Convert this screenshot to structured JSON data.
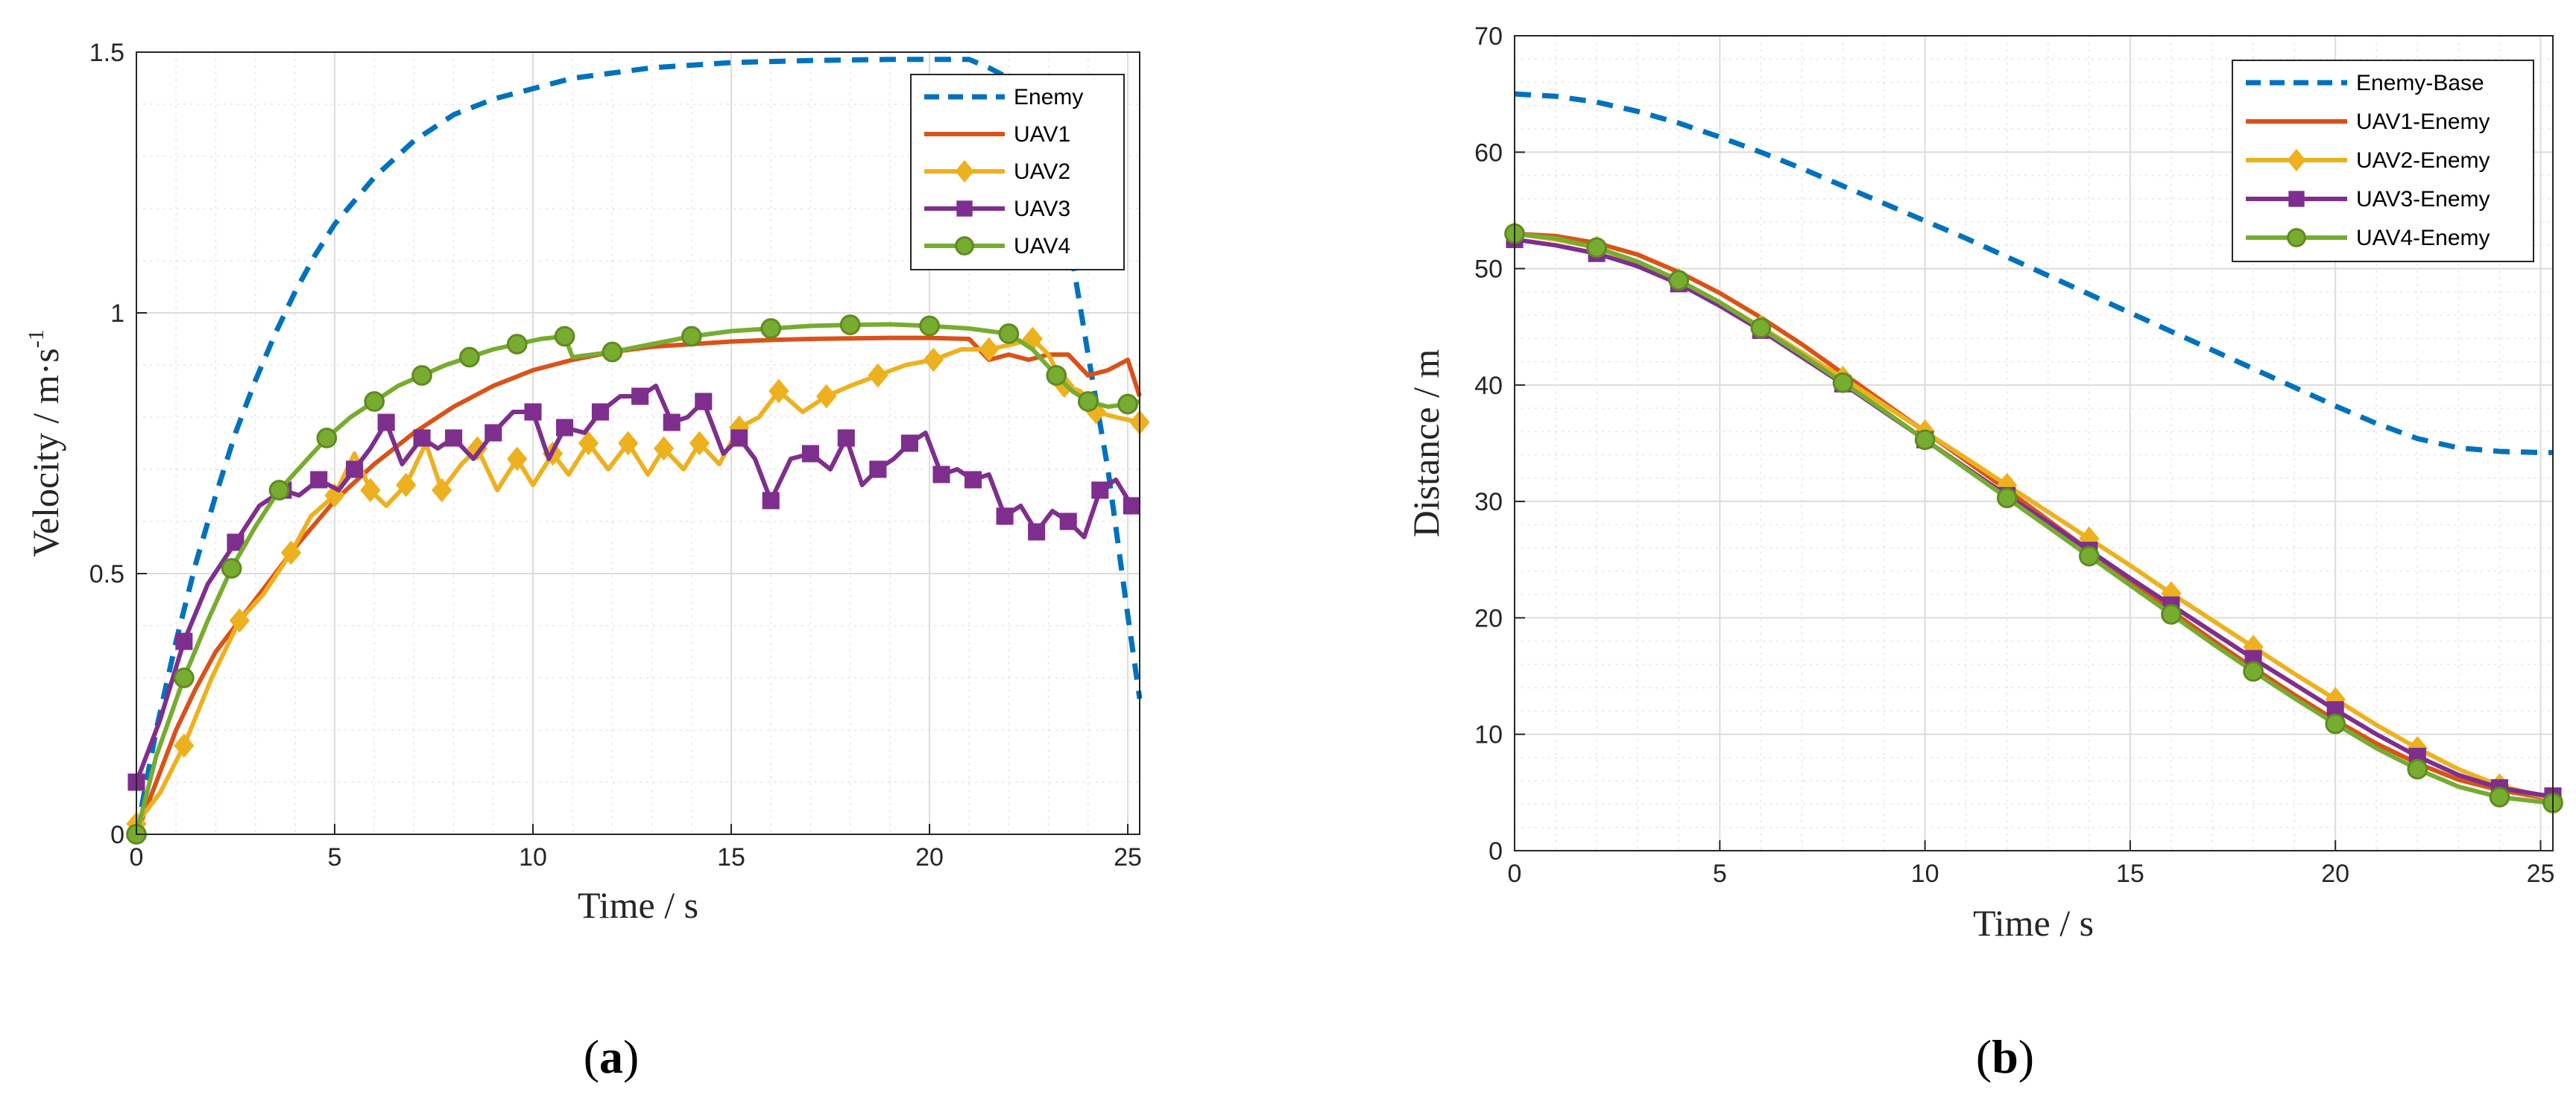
{
  "colors": {
    "enemy": "#0072BD",
    "uav1": "#D95319",
    "uav2": "#EDB120",
    "uav3": "#7E2F8E",
    "uav4": "#77AC30",
    "grid": "#dcdcdc",
    "axis": "#262626"
  },
  "chart_data": [
    {
      "type": "line",
      "panel_caption": "(a)",
      "xlabel": "Time / s",
      "ylabel_main": "Velocity / m·s",
      "ylabel_sup": "-1",
      "xlim": [
        0,
        25.3
      ],
      "ylim": [
        0,
        1.5
      ],
      "xticks": [
        0,
        5,
        10,
        15,
        20,
        25
      ],
      "yticks": [
        0,
        0.5,
        1,
        1.5
      ],
      "xtick_labels": [
        "0",
        "5",
        "10",
        "15",
        "20",
        "25"
      ],
      "ytick_labels": [
        "0",
        "0.5",
        "1",
        "1.5"
      ],
      "grid": true,
      "minor_grid": true,
      "legend_position": "top-right",
      "series": [
        {
          "name": "Enemy",
          "style": "dashed",
          "marker": "none",
          "color_key": "enemy",
          "x": [
            0,
            0.5,
            1,
            1.5,
            2,
            2.5,
            3,
            3.5,
            4,
            4.5,
            5,
            6,
            7,
            8,
            9,
            10,
            11,
            12,
            13,
            14,
            15,
            16,
            17,
            18,
            19,
            20,
            21,
            21.5,
            22,
            22.5,
            23,
            23.5,
            24,
            24.5,
            25,
            25.3
          ],
          "y": [
            0,
            0.2,
            0.37,
            0.52,
            0.65,
            0.77,
            0.87,
            0.96,
            1.04,
            1.11,
            1.17,
            1.26,
            1.33,
            1.38,
            1.41,
            1.43,
            1.45,
            1.46,
            1.47,
            1.475,
            1.48,
            1.482,
            1.484,
            1.485,
            1.486,
            1.486,
            1.486,
            1.47,
            1.45,
            1.43,
            1.38,
            1.15,
            0.92,
            0.7,
            0.42,
            0.26
          ]
        },
        {
          "name": "UAV1",
          "style": "solid",
          "marker": "none",
          "color_key": "uav1",
          "x": [
            0,
            0.5,
            1,
            1.5,
            2,
            3,
            4,
            5,
            6,
            7,
            8,
            9,
            10,
            11,
            12,
            13,
            14,
            15,
            16,
            17,
            18,
            19,
            20,
            21,
            21.5,
            22,
            22.5,
            23,
            23.5,
            24,
            24.5,
            25,
            25.3
          ],
          "y": [
            0,
            0.1,
            0.2,
            0.28,
            0.35,
            0.45,
            0.55,
            0.64,
            0.71,
            0.77,
            0.82,
            0.86,
            0.89,
            0.91,
            0.925,
            0.935,
            0.94,
            0.945,
            0.948,
            0.95,
            0.951,
            0.952,
            0.952,
            0.95,
            0.91,
            0.92,
            0.91,
            0.92,
            0.92,
            0.88,
            0.89,
            0.91,
            0.84
          ]
        },
        {
          "name": "UAV2",
          "style": "solid",
          "marker": "diamond",
          "color_key": "uav2",
          "x": [
            0,
            0.6,
            1.2,
            1.9,
            2.6,
            3.2,
            3.9,
            4.4,
            5.0,
            5.5,
            5.9,
            6.3,
            6.8,
            7.3,
            7.7,
            8.2,
            8.6,
            9.1,
            9.6,
            10.0,
            10.5,
            10.9,
            11.4,
            11.9,
            12.4,
            12.9,
            13.3,
            13.8,
            14.2,
            14.7,
            15.2,
            15.7,
            16.2,
            16.8,
            17.4,
            18.0,
            18.7,
            19.4,
            20.1,
            20.8,
            21.5,
            22.1,
            22.6,
            23.0,
            23.4,
            23.8,
            24.2,
            24.7,
            25.3
          ],
          "y": [
            0.02,
            0.08,
            0.17,
            0.3,
            0.41,
            0.46,
            0.54,
            0.61,
            0.65,
            0.73,
            0.66,
            0.63,
            0.67,
            0.75,
            0.66,
            0.71,
            0.74,
            0.66,
            0.72,
            0.67,
            0.73,
            0.69,
            0.75,
            0.7,
            0.75,
            0.69,
            0.74,
            0.7,
            0.75,
            0.71,
            0.78,
            0.8,
            0.85,
            0.81,
            0.84,
            0.86,
            0.88,
            0.9,
            0.91,
            0.93,
            0.93,
            0.94,
            0.95,
            0.92,
            0.86,
            0.85,
            0.81,
            0.8,
            0.79
          ]
        },
        {
          "name": "UAV3",
          "style": "solid",
          "marker": "square",
          "color_key": "uav3",
          "x": [
            0,
            0.6,
            1.2,
            1.8,
            2.5,
            3.1,
            3.7,
            4.1,
            4.6,
            5.1,
            5.5,
            5.9,
            6.3,
            6.7,
            7.2,
            7.6,
            8.0,
            8.5,
            9.0,
            9.5,
            10.0,
            10.4,
            10.8,
            11.3,
            11.7,
            12.2,
            12.7,
            13.1,
            13.5,
            13.9,
            14.3,
            14.8,
            15.2,
            15.6,
            16.0,
            16.5,
            17.0,
            17.5,
            17.9,
            18.3,
            18.7,
            19.1,
            19.5,
            19.9,
            20.3,
            20.7,
            21.1,
            21.5,
            21.9,
            22.3,
            22.7,
            23.1,
            23.5,
            23.9,
            24.3,
            24.7,
            25.1,
            25.3
          ],
          "y": [
            0.1,
            0.22,
            0.37,
            0.48,
            0.56,
            0.63,
            0.66,
            0.65,
            0.68,
            0.66,
            0.7,
            0.74,
            0.79,
            0.71,
            0.76,
            0.74,
            0.76,
            0.72,
            0.77,
            0.81,
            0.81,
            0.72,
            0.78,
            0.77,
            0.81,
            0.84,
            0.84,
            0.86,
            0.79,
            0.8,
            0.83,
            0.73,
            0.76,
            0.72,
            0.64,
            0.72,
            0.73,
            0.7,
            0.76,
            0.67,
            0.7,
            0.72,
            0.75,
            0.77,
            0.69,
            0.7,
            0.68,
            0.69,
            0.61,
            0.63,
            0.58,
            0.62,
            0.6,
            0.57,
            0.66,
            0.68,
            0.63,
            0.64
          ]
        },
        {
          "name": "UAV4",
          "style": "solid",
          "marker": "circle",
          "color_key": "uav4",
          "x": [
            0,
            0.5,
            1.2,
            1.8,
            2.4,
            3,
            3.6,
            4.2,
            4.8,
            5.4,
            6,
            6.6,
            7.2,
            7.8,
            8.4,
            9,
            9.6,
            10.2,
            10.8,
            11,
            12,
            13,
            14,
            15,
            16,
            17,
            18,
            19,
            20,
            21,
            22,
            22.6,
            23.2,
            23.6,
            24,
            24.5,
            25,
            25.3
          ],
          "y": [
            0,
            0.15,
            0.3,
            0.41,
            0.51,
            0.59,
            0.66,
            0.71,
            0.76,
            0.8,
            0.83,
            0.86,
            0.88,
            0.9,
            0.915,
            0.93,
            0.94,
            0.95,
            0.955,
            0.915,
            0.925,
            0.94,
            0.955,
            0.965,
            0.97,
            0.975,
            0.977,
            0.978,
            0.975,
            0.97,
            0.96,
            0.93,
            0.88,
            0.85,
            0.83,
            0.82,
            0.825,
            0.83
          ]
        }
      ]
    },
    {
      "type": "line",
      "panel_caption": "(b)",
      "xlabel": "Time / s",
      "ylabel_main": "Distance / m",
      "xlim": [
        0,
        25.3
      ],
      "ylim": [
        0,
        70
      ],
      "xticks": [
        0,
        5,
        10,
        15,
        20,
        25
      ],
      "yticks": [
        0,
        10,
        20,
        30,
        40,
        50,
        60,
        70
      ],
      "xtick_labels": [
        "0",
        "5",
        "10",
        "15",
        "20",
        "25"
      ],
      "ytick_labels": [
        "0",
        "10",
        "20",
        "30",
        "40",
        "50",
        "60",
        "70"
      ],
      "grid": true,
      "minor_grid": true,
      "legend_position": "top-right",
      "series": [
        {
          "name": "Enemy-Base",
          "style": "dashed",
          "marker": "none",
          "color_key": "enemy",
          "x": [
            0,
            1,
            2,
            3,
            4,
            5,
            6,
            7,
            8,
            9,
            10,
            11,
            12,
            13,
            14,
            15,
            16,
            17,
            18,
            19,
            20,
            21,
            22,
            23,
            24,
            25,
            25.3
          ],
          "y": [
            65,
            64.8,
            64.3,
            63.5,
            62.5,
            61.3,
            60,
            58.6,
            57.1,
            55.6,
            54.1,
            52.6,
            51,
            49.4,
            47.8,
            46.2,
            44.6,
            43,
            41.4,
            39.8,
            38.2,
            36.7,
            35.4,
            34.6,
            34.3,
            34.2,
            34.2
          ]
        },
        {
          "name": "UAV1-Enemy",
          "style": "solid",
          "marker": "none",
          "color_key": "uav1",
          "x": [
            0,
            1,
            2,
            3,
            4,
            5,
            6,
            7,
            8,
            9,
            10,
            11,
            12,
            13,
            14,
            15,
            16,
            17,
            18,
            19,
            20,
            21,
            22,
            23,
            24,
            25,
            25.3
          ],
          "y": [
            53,
            52.8,
            52.2,
            51.2,
            49.7,
            47.9,
            45.8,
            43.5,
            41,
            38.5,
            36,
            33.5,
            31,
            28.4,
            25.8,
            23.2,
            20.6,
            18.1,
            15.7,
            13.4,
            11.2,
            9.2,
            7.5,
            6.1,
            5.2,
            4.6,
            4.5
          ]
        },
        {
          "name": "UAV2-Enemy",
          "style": "solid",
          "marker": "diamond",
          "color_key": "uav2",
          "x": [
            0,
            1,
            2,
            3,
            4,
            5,
            6,
            7,
            8,
            9,
            10,
            11,
            12,
            13,
            14,
            15,
            16,
            17,
            18,
            19,
            20,
            21,
            22,
            23,
            24,
            25,
            25.3
          ],
          "y": [
            53,
            52.5,
            51.8,
            50.5,
            49,
            47.1,
            45,
            42.8,
            40.6,
            38.3,
            36,
            33.7,
            31.4,
            29.1,
            26.8,
            24.5,
            22.1,
            19.8,
            17.5,
            15.2,
            13,
            10.8,
            8.8,
            7,
            5.6,
            4.7,
            4.5
          ]
        },
        {
          "name": "UAV3-Enemy",
          "style": "solid",
          "marker": "square",
          "color_key": "uav3",
          "x": [
            0,
            1,
            2,
            3,
            4,
            5,
            6,
            7,
            8,
            9,
            10,
            11,
            12,
            13,
            14,
            15,
            16,
            17,
            18,
            19,
            20,
            21,
            22,
            23,
            24,
            25,
            25.3
          ],
          "y": [
            52.5,
            52,
            51.3,
            50.2,
            48.7,
            46.8,
            44.7,
            42.4,
            40.1,
            37.7,
            35.3,
            32.9,
            30.5,
            28.2,
            25.8,
            23.4,
            21.1,
            18.8,
            16.5,
            14.3,
            12.1,
            10,
            8.1,
            6.5,
            5.4,
            4.8,
            4.7
          ]
        },
        {
          "name": "UAV4-Enemy",
          "style": "solid",
          "marker": "circle",
          "color_key": "uav4",
          "x": [
            0,
            1,
            2,
            3,
            4,
            5,
            6,
            7,
            8,
            9,
            10,
            11,
            12,
            13,
            14,
            15,
            16,
            17,
            18,
            19,
            20,
            21,
            22,
            23,
            24,
            25,
            25.3
          ],
          "y": [
            53,
            52.6,
            51.8,
            50.6,
            49,
            47.1,
            44.9,
            42.6,
            40.2,
            37.8,
            35.3,
            32.8,
            30.3,
            27.8,
            25.3,
            22.8,
            20.3,
            17.8,
            15.4,
            13.1,
            10.9,
            8.8,
            7,
            5.5,
            4.6,
            4.2,
            4.1
          ]
        }
      ]
    }
  ]
}
